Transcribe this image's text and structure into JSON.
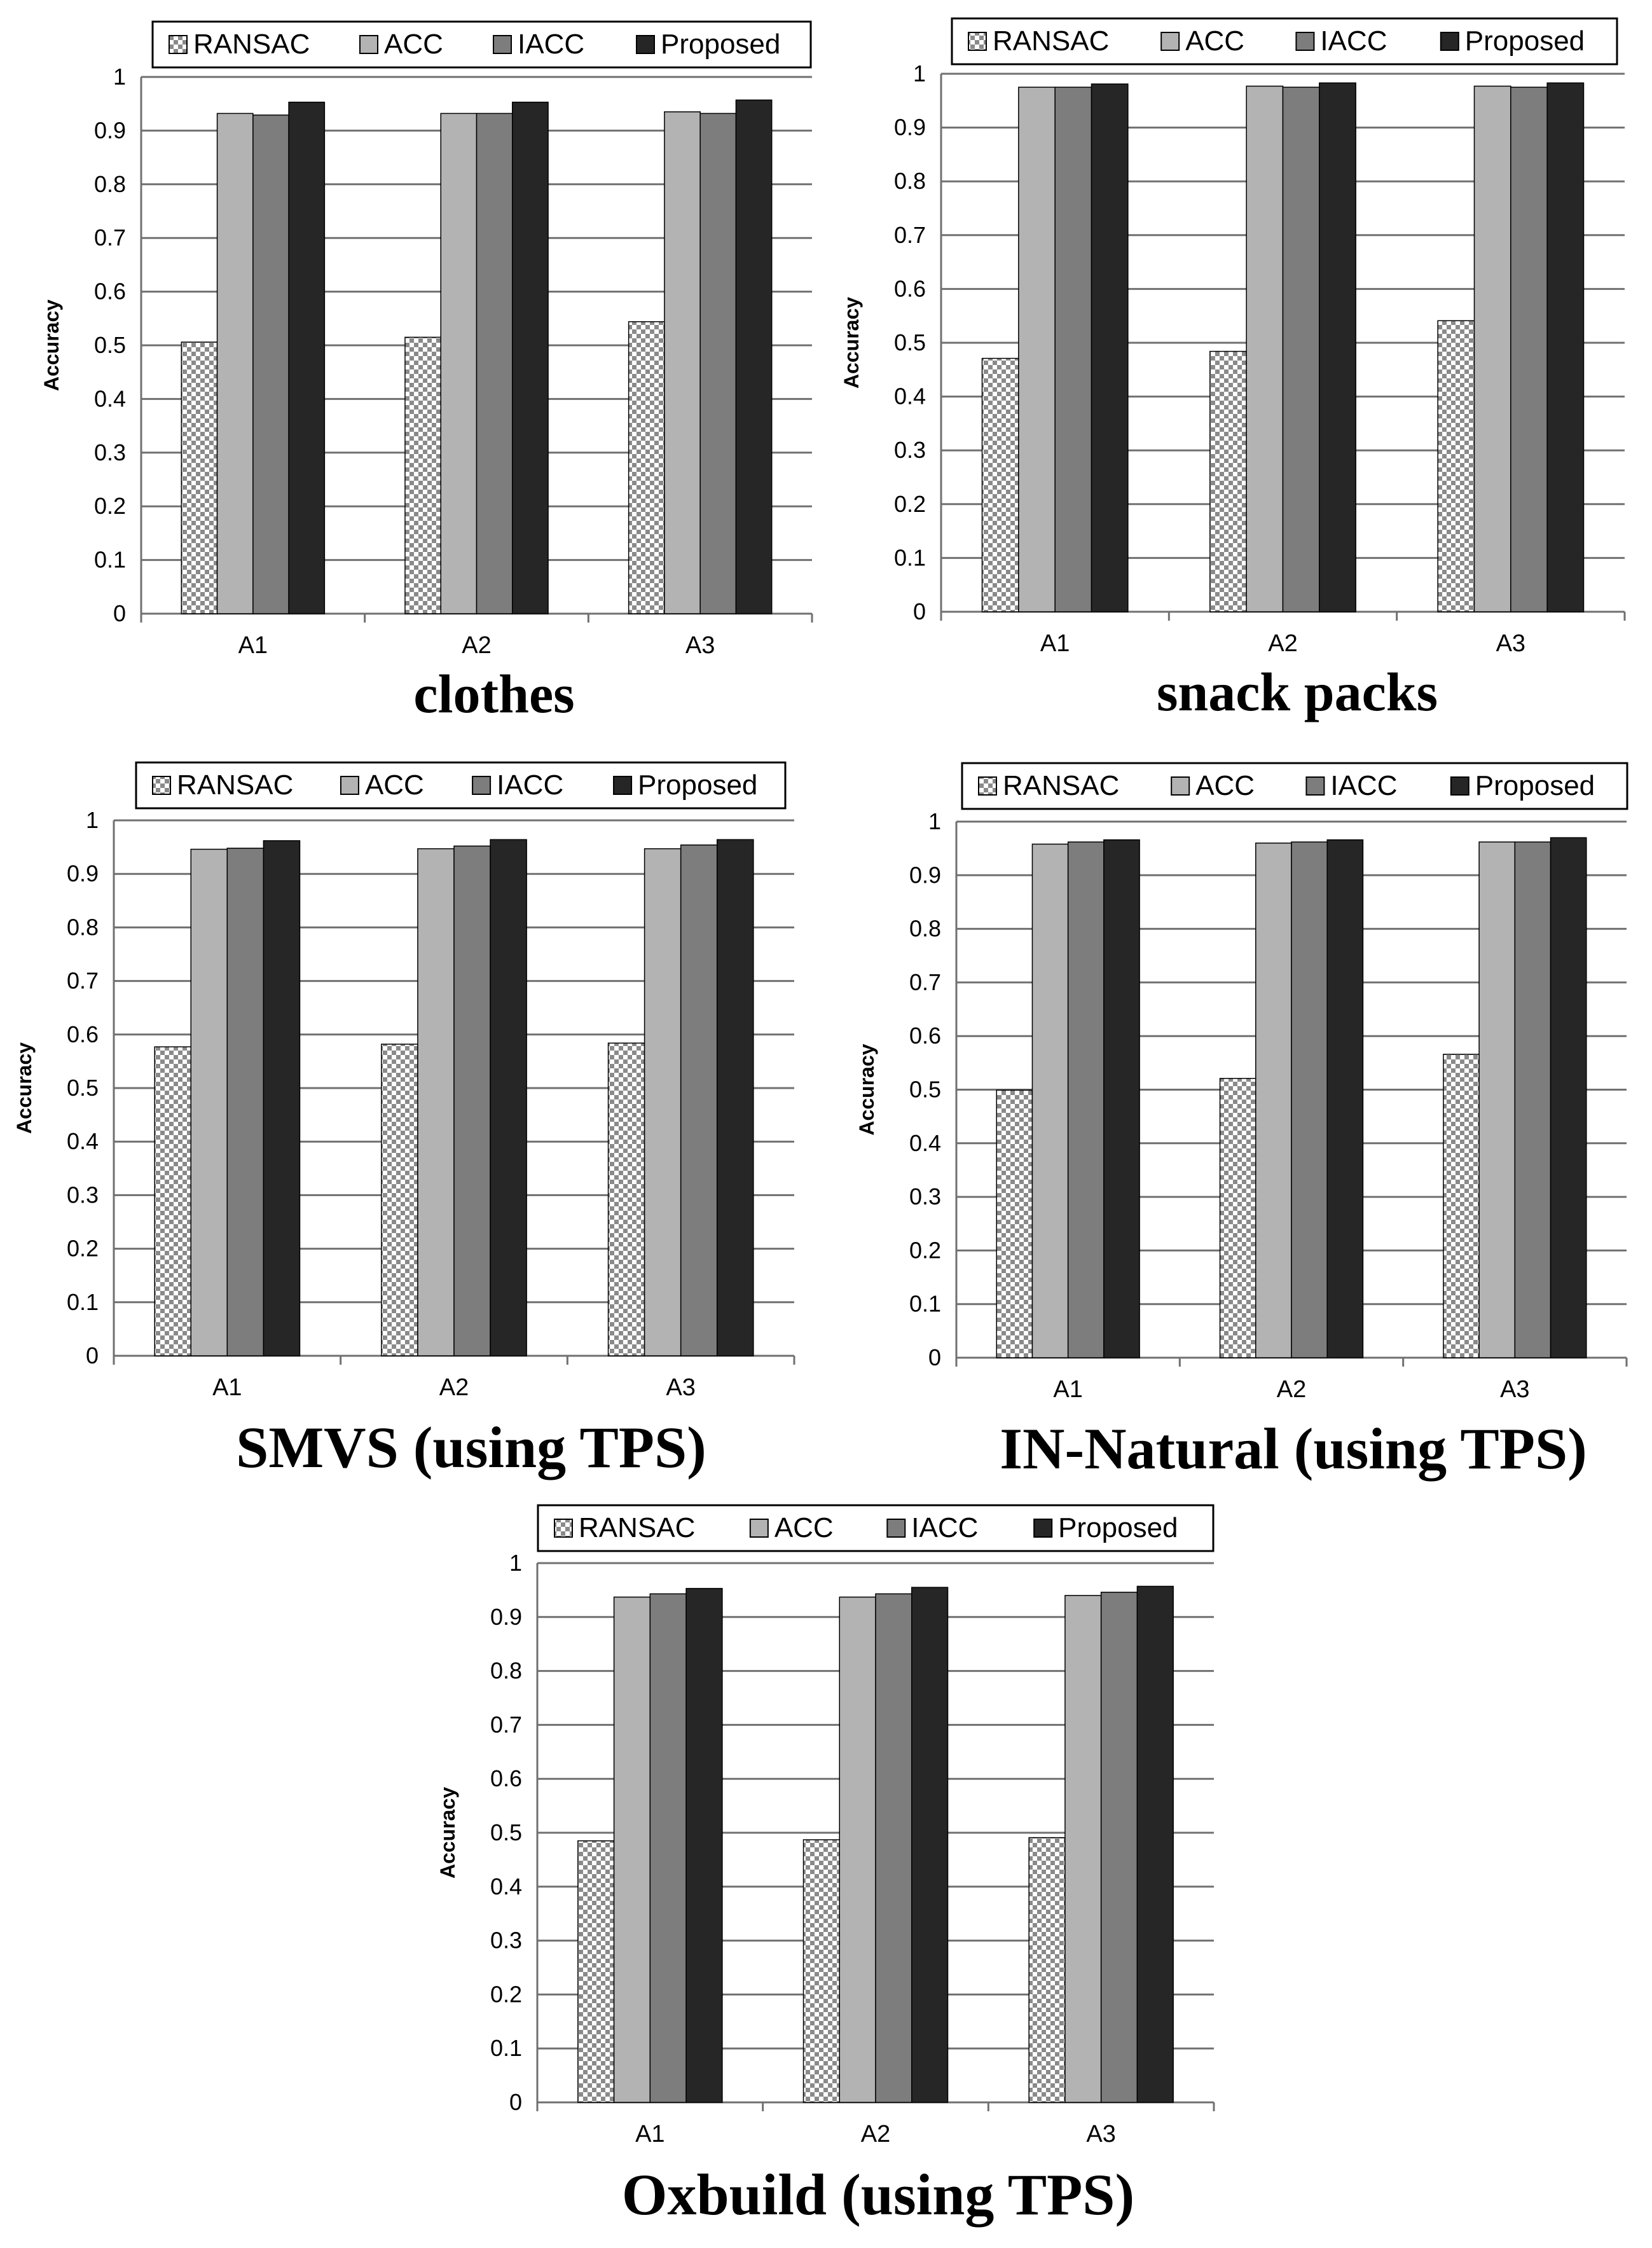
{
  "legend_labels": [
    "RANSAC",
    "ACC",
    "IACC",
    "Proposed"
  ],
  "colors": {
    "RANSAC_checker_light": "#ffffff",
    "RANSAC_checker_dark": "#8a8a8a",
    "ACC": "#b3b3b3",
    "IACC": "#7d7d7d",
    "Proposed": "#262626",
    "gridline": "#707070",
    "text": "#000000"
  },
  "chart_data": [
    {
      "type": "bar",
      "title": "clothes",
      "ylabel": "Accuracy",
      "xlabel": "",
      "categories": [
        "A1",
        "A2",
        "A3"
      ],
      "ylim": [
        0,
        1
      ],
      "yticks": [
        "0",
        "0.1",
        "0.2",
        "0.3",
        "0.4",
        "0.5",
        "0.6",
        "0.7",
        "0.8",
        "0.9",
        "1"
      ],
      "grid": true,
      "legend": "top",
      "series": [
        {
          "name": "RANSAC",
          "values": [
            0.506,
            0.515,
            0.544
          ]
        },
        {
          "name": "ACC",
          "values": [
            0.932,
            0.932,
            0.935
          ]
        },
        {
          "name": "IACC",
          "values": [
            0.929,
            0.932,
            0.932
          ]
        },
        {
          "name": "Proposed",
          "values": [
            0.953,
            0.953,
            0.957
          ]
        }
      ]
    },
    {
      "type": "bar",
      "title": "snack packs",
      "ylabel": "Accuracy",
      "xlabel": "",
      "categories": [
        "A1",
        "A2",
        "A3"
      ],
      "ylim": [
        0,
        1
      ],
      "yticks": [
        "0",
        "0.1",
        "0.2",
        "0.3",
        "0.4",
        "0.5",
        "0.6",
        "0.7",
        "0.8",
        "0.9",
        "1"
      ],
      "grid": true,
      "legend": "top",
      "series": [
        {
          "name": "RANSAC",
          "values": [
            0.471,
            0.484,
            0.541
          ]
        },
        {
          "name": "ACC",
          "values": [
            0.975,
            0.977,
            0.977
          ]
        },
        {
          "name": "IACC",
          "values": [
            0.975,
            0.975,
            0.975
          ]
        },
        {
          "name": "Proposed",
          "values": [
            0.981,
            0.983,
            0.983
          ]
        }
      ]
    },
    {
      "type": "bar",
      "title": "SMVS (using TPS)",
      "ylabel": "Accuracy",
      "xlabel": "",
      "categories": [
        "A1",
        "A2",
        "A3"
      ],
      "ylim": [
        0,
        1
      ],
      "yticks": [
        "0",
        "0.1",
        "0.2",
        "0.3",
        "0.4",
        "0.5",
        "0.6",
        "0.7",
        "0.8",
        "0.9",
        "1"
      ],
      "grid": true,
      "legend": "top",
      "series": [
        {
          "name": "RANSAC",
          "values": [
            0.577,
            0.582,
            0.584
          ]
        },
        {
          "name": "ACC",
          "values": [
            0.946,
            0.947,
            0.947
          ]
        },
        {
          "name": "IACC",
          "values": [
            0.948,
            0.952,
            0.954
          ]
        },
        {
          "name": "Proposed",
          "values": [
            0.962,
            0.964,
            0.964
          ]
        }
      ]
    },
    {
      "type": "bar",
      "title": "IN-Natural (using TPS)",
      "ylabel": "Accuracy",
      "xlabel": "",
      "categories": [
        "A1",
        "A2",
        "A3"
      ],
      "ylim": [
        0,
        1
      ],
      "yticks": [
        "0",
        "0.1",
        "0.2",
        "0.3",
        "0.4",
        "0.5",
        "0.6",
        "0.7",
        "0.8",
        "0.9",
        "1"
      ],
      "grid": true,
      "legend": "top",
      "series": [
        {
          "name": "RANSAC",
          "values": [
            0.499,
            0.521,
            0.566
          ]
        },
        {
          "name": "ACC",
          "values": [
            0.958,
            0.96,
            0.962
          ]
        },
        {
          "name": "IACC",
          "values": [
            0.962,
            0.962,
            0.962
          ]
        },
        {
          "name": "Proposed",
          "values": [
            0.966,
            0.966,
            0.97
          ]
        }
      ]
    },
    {
      "type": "bar",
      "title": "Oxbuild (using TPS)",
      "ylabel": "Accuracy",
      "xlabel": "",
      "categories": [
        "A1",
        "A2",
        "A3"
      ],
      "ylim": [
        0,
        1
      ],
      "yticks": [
        "0",
        "0.1",
        "0.2",
        "0.3",
        "0.4",
        "0.5",
        "0.6",
        "0.7",
        "0.8",
        "0.9",
        "1"
      ],
      "grid": true,
      "legend": "top",
      "series": [
        {
          "name": "RANSAC",
          "values": [
            0.485,
            0.487,
            0.491
          ]
        },
        {
          "name": "ACC",
          "values": [
            0.937,
            0.937,
            0.94
          ]
        },
        {
          "name": "IACC",
          "values": [
            0.943,
            0.943,
            0.946
          ]
        },
        {
          "name": "Proposed",
          "values": [
            0.953,
            0.955,
            0.957
          ]
        }
      ]
    }
  ]
}
